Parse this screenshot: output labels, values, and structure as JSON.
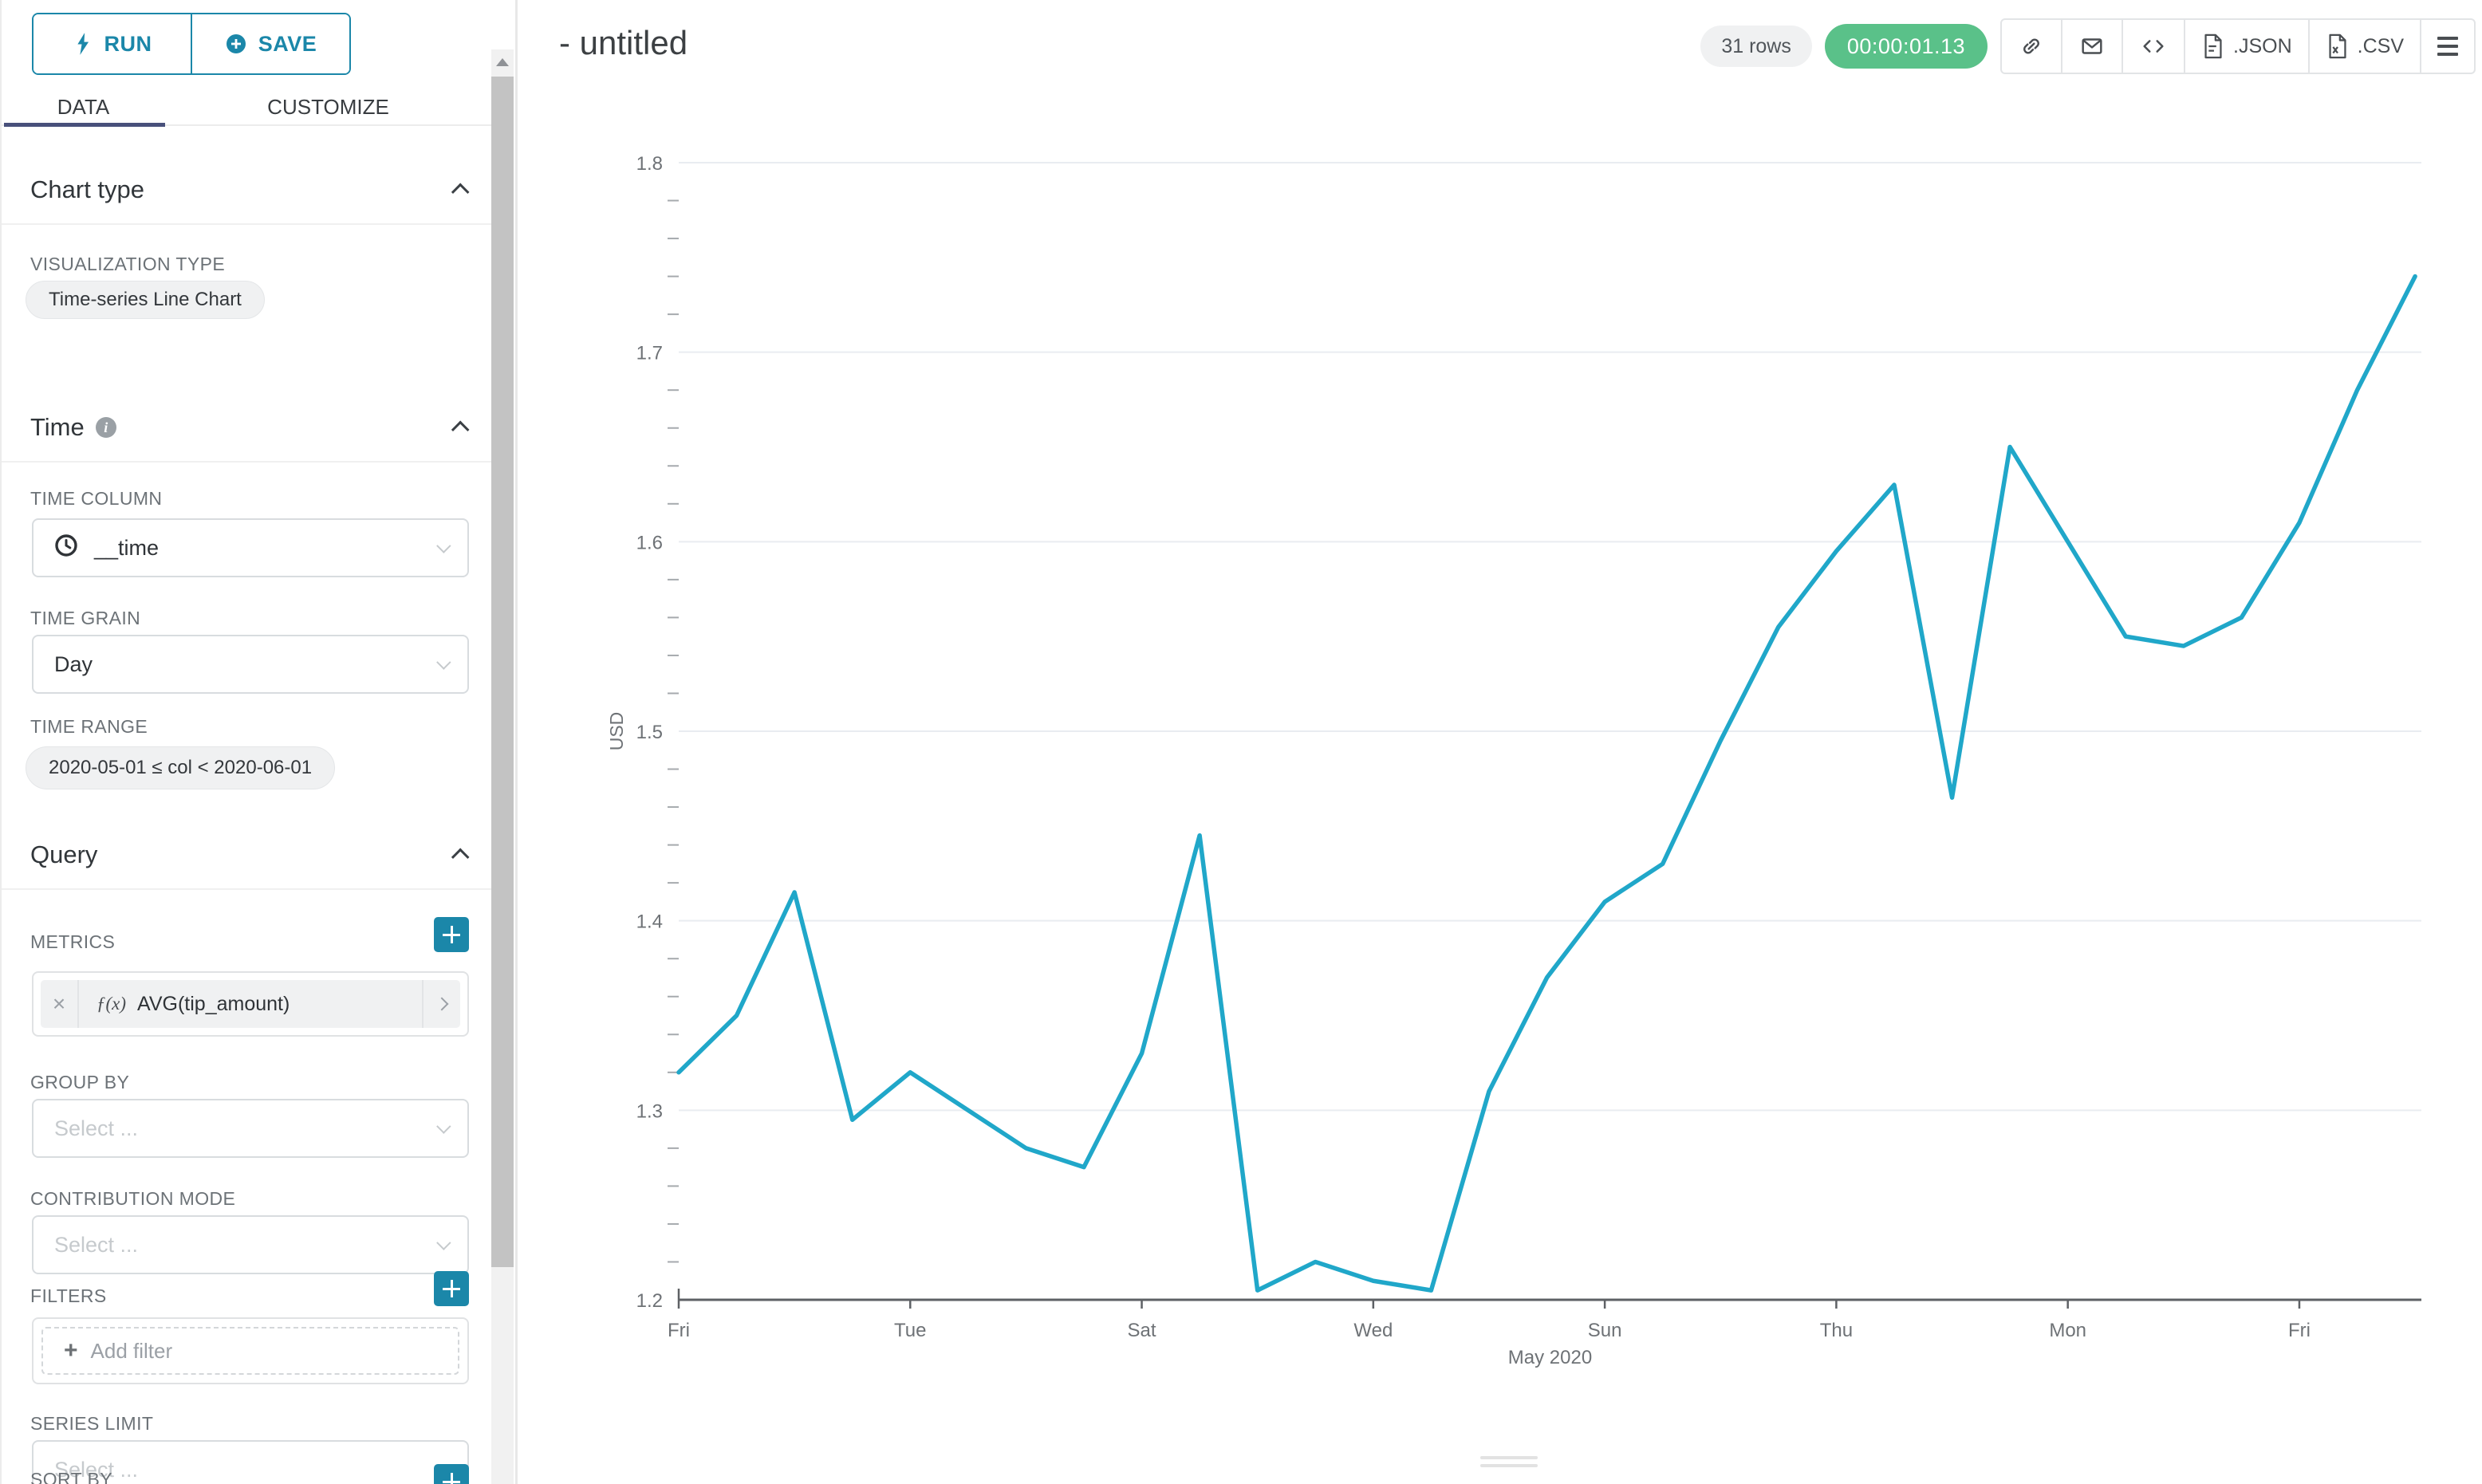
{
  "colors": {
    "accent_teal": "#1b87a9",
    "line": "#20a7c9",
    "timer_green": "#5ac189",
    "tab_underline": "#48507b"
  },
  "sidebar": {
    "run_button": "RUN",
    "save_button": "SAVE",
    "tabs": [
      {
        "label": "DATA"
      },
      {
        "label": "CUSTOMIZE"
      }
    ],
    "chart_type_section": {
      "title": "Chart type",
      "visualization_type_label": "VISUALIZATION TYPE",
      "visualization_type_value": "Time-series Line Chart"
    },
    "time_section": {
      "title": "Time",
      "time_column_label": "TIME COLUMN",
      "time_column_value": "__time",
      "time_grain_label": "TIME GRAIN",
      "time_grain_value": "Day",
      "time_range_label": "TIME RANGE",
      "time_range_value": "2020-05-01 ≤ col < 2020-06-01"
    },
    "query_section": {
      "title": "Query",
      "metrics_label": "METRICS",
      "metric_function_prefix": "ƒ(x)",
      "metric_value": "AVG(tip_amount)",
      "group_by_label": "GROUP BY",
      "contribution_mode_label": "CONTRIBUTION MODE",
      "filters_label": "FILTERS",
      "add_filter_label": "Add filter",
      "series_limit_label": "SERIES LIMIT",
      "sort_by_label": "SORT BY",
      "select_placeholder": "Select ..."
    }
  },
  "header": {
    "title": "- untitled",
    "rows_badge": "31 rows",
    "timer_badge": "00:00:01.13",
    "json_button": ".JSON",
    "csv_button": ".CSV"
  },
  "chart_data": {
    "type": "line",
    "title": "",
    "xlabel": "May 2020",
    "ylabel": "USD",
    "ylim": [
      1.2,
      1.8
    ],
    "yticks": [
      1.2,
      1.3,
      1.4,
      1.5,
      1.6,
      1.7,
      1.8
    ],
    "y_minor_step": 0.02,
    "grid": "horizontal",
    "legend": "none",
    "line_color": "#20a7c9",
    "xtick_labels": [
      {
        "index": 0,
        "label": "Fri"
      },
      {
        "index": 4,
        "label": "Tue"
      },
      {
        "index": 8,
        "label": "Sat"
      },
      {
        "index": 12,
        "label": "Wed"
      },
      {
        "index": 16,
        "label": "Sun"
      },
      {
        "index": 20,
        "label": "Thu"
      },
      {
        "index": 24,
        "label": "Mon"
      },
      {
        "index": 28,
        "label": "Fri"
      }
    ],
    "series": [
      {
        "name": "AVG(tip_amount)",
        "x": [
          "2020-05-01",
          "2020-05-02",
          "2020-05-03",
          "2020-05-04",
          "2020-05-05",
          "2020-05-06",
          "2020-05-07",
          "2020-05-08",
          "2020-05-09",
          "2020-05-10",
          "2020-05-11",
          "2020-05-12",
          "2020-05-13",
          "2020-05-14",
          "2020-05-15",
          "2020-05-16",
          "2020-05-17",
          "2020-05-18",
          "2020-05-19",
          "2020-05-20",
          "2020-05-21",
          "2020-05-22",
          "2020-05-23",
          "2020-05-24",
          "2020-05-25",
          "2020-05-26",
          "2020-05-27",
          "2020-05-28",
          "2020-05-29",
          "2020-05-30",
          "2020-05-31"
        ],
        "values": [
          1.32,
          1.35,
          1.415,
          1.295,
          1.32,
          1.3,
          1.28,
          1.27,
          1.33,
          1.445,
          1.205,
          1.22,
          1.21,
          1.205,
          1.31,
          1.37,
          1.41,
          1.43,
          1.495,
          1.555,
          1.595,
          1.63,
          1.465,
          1.65,
          1.6,
          1.55,
          1.545,
          1.56,
          1.61,
          1.68,
          1.74
        ]
      }
    ]
  }
}
